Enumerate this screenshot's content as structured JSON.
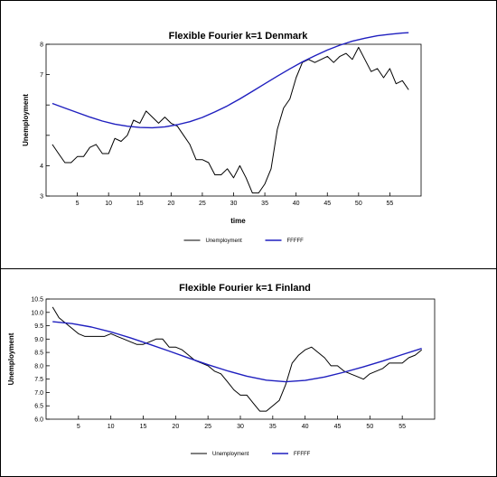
{
  "chart_data": [
    {
      "type": "line",
      "title": "Flexible Fourier k=1 Denmark",
      "xlabel": "time",
      "ylabel": "Unemployment",
      "xlim": [
        0,
        60
      ],
      "ylim": [
        3,
        8
      ],
      "xticks": [
        5,
        10,
        15,
        20,
        25,
        30,
        35,
        40,
        45,
        50,
        55
      ],
      "yticks": [
        3,
        4,
        5,
        6,
        7,
        8
      ],
      "ytick_labels": [
        "3",
        "4",
        "",
        "",
        "7",
        "8"
      ],
      "legend": "bottom-center",
      "series": [
        {
          "name": "Unemployment",
          "color": "#000000",
          "x": [
            1,
            2,
            3,
            4,
            5,
            6,
            7,
            8,
            9,
            10,
            11,
            12,
            13,
            14,
            15,
            16,
            17,
            18,
            19,
            20,
            21,
            22,
            23,
            24,
            25,
            26,
            27,
            28,
            29,
            30,
            31,
            32,
            33,
            34,
            35,
            36,
            37,
            38,
            39,
            40,
            41,
            42,
            43,
            44,
            45,
            46,
            47,
            48,
            49,
            50,
            51,
            52,
            53,
            54,
            55,
            56,
            57,
            58
          ],
          "values": [
            4.7,
            4.4,
            4.1,
            4.1,
            4.3,
            4.3,
            4.6,
            4.7,
            4.4,
            4.4,
            4.9,
            4.8,
            5.0,
            5.5,
            5.4,
            5.8,
            5.6,
            5.4,
            5.6,
            5.4,
            5.3,
            5.0,
            4.7,
            4.2,
            4.2,
            4.1,
            3.7,
            3.7,
            3.9,
            3.6,
            4.0,
            3.6,
            3.1,
            3.1,
            3.4,
            3.9,
            5.2,
            5.9,
            6.2,
            6.9,
            7.4,
            7.5,
            7.4,
            7.5,
            7.6,
            7.4,
            7.6,
            7.7,
            7.5,
            7.9,
            7.5,
            7.1,
            7.2,
            6.9,
            7.2,
            6.7,
            6.8,
            6.5
          ]
        },
        {
          "name": "FFFFF",
          "color": "#1f1fbf",
          "x": [
            1,
            3,
            5,
            7,
            9,
            11,
            13,
            15,
            17,
            19,
            21,
            23,
            25,
            27,
            29,
            31,
            33,
            35,
            37,
            39,
            41,
            43,
            45,
            47,
            49,
            51,
            53,
            55,
            57,
            58
          ],
          "values": [
            6.05,
            5.9,
            5.75,
            5.6,
            5.47,
            5.37,
            5.3,
            5.26,
            5.25,
            5.28,
            5.35,
            5.45,
            5.59,
            5.77,
            5.97,
            6.2,
            6.45,
            6.7,
            6.95,
            7.19,
            7.42,
            7.62,
            7.81,
            7.97,
            8.1,
            8.2,
            8.28,
            8.33,
            8.37,
            8.38
          ]
        }
      ]
    },
    {
      "type": "line",
      "title": "Flexible Fourier k=1 Finland",
      "xlabel": "",
      "ylabel": "Unemployment",
      "xlim": [
        0,
        60
      ],
      "ylim": [
        6.0,
        10.5
      ],
      "xticks": [
        5,
        10,
        15,
        20,
        25,
        30,
        35,
        40,
        45,
        50,
        55
      ],
      "yticks": [
        6.0,
        6.5,
        7.0,
        7.5,
        8.0,
        8.5,
        9.0,
        9.5,
        10.0,
        10.5
      ],
      "ytick_labels": [
        "6.0",
        "6.5",
        "7.0",
        "7.5",
        "8.0",
        "8.5",
        "9.0",
        "9.5",
        "10.0",
        "10.5"
      ],
      "legend": "bottom-center",
      "series": [
        {
          "name": "Unemployment",
          "color": "#000000",
          "x": [
            1,
            2,
            3,
            4,
            5,
            6,
            7,
            8,
            9,
            10,
            11,
            12,
            13,
            14,
            15,
            16,
            17,
            18,
            19,
            20,
            21,
            22,
            23,
            24,
            25,
            26,
            27,
            28,
            29,
            30,
            31,
            32,
            33,
            34,
            35,
            36,
            37,
            38,
            39,
            40,
            41,
            42,
            43,
            44,
            45,
            46,
            47,
            48,
            49,
            50,
            51,
            52,
            53,
            54,
            55,
            56,
            57,
            58
          ],
          "values": [
            10.2,
            9.8,
            9.6,
            9.4,
            9.2,
            9.1,
            9.1,
            9.1,
            9.1,
            9.2,
            9.1,
            9.0,
            8.9,
            8.8,
            8.8,
            8.9,
            9.0,
            9.0,
            8.7,
            8.7,
            8.6,
            8.4,
            8.2,
            8.1,
            8.0,
            7.8,
            7.7,
            7.4,
            7.1,
            6.9,
            6.9,
            6.6,
            6.3,
            6.3,
            6.5,
            6.7,
            7.3,
            8.1,
            8.4,
            8.6,
            8.7,
            8.5,
            8.3,
            8.0,
            8.0,
            7.8,
            7.7,
            7.6,
            7.5,
            7.7,
            7.8,
            7.9,
            8.1,
            8.1,
            8.1,
            8.3,
            8.4,
            8.6
          ]
        },
        {
          "name": "FFFFF",
          "color": "#1f1fbf",
          "x": [
            1,
            4,
            7,
            10,
            13,
            16,
            19,
            22,
            25,
            28,
            31,
            34,
            37,
            40,
            43,
            46,
            49,
            52,
            55,
            58
          ],
          "values": [
            9.65,
            9.58,
            9.45,
            9.27,
            9.05,
            8.8,
            8.55,
            8.29,
            8.04,
            7.81,
            7.61,
            7.46,
            7.4,
            7.45,
            7.58,
            7.76,
            7.96,
            8.18,
            8.42,
            8.65
          ]
        }
      ]
    }
  ]
}
